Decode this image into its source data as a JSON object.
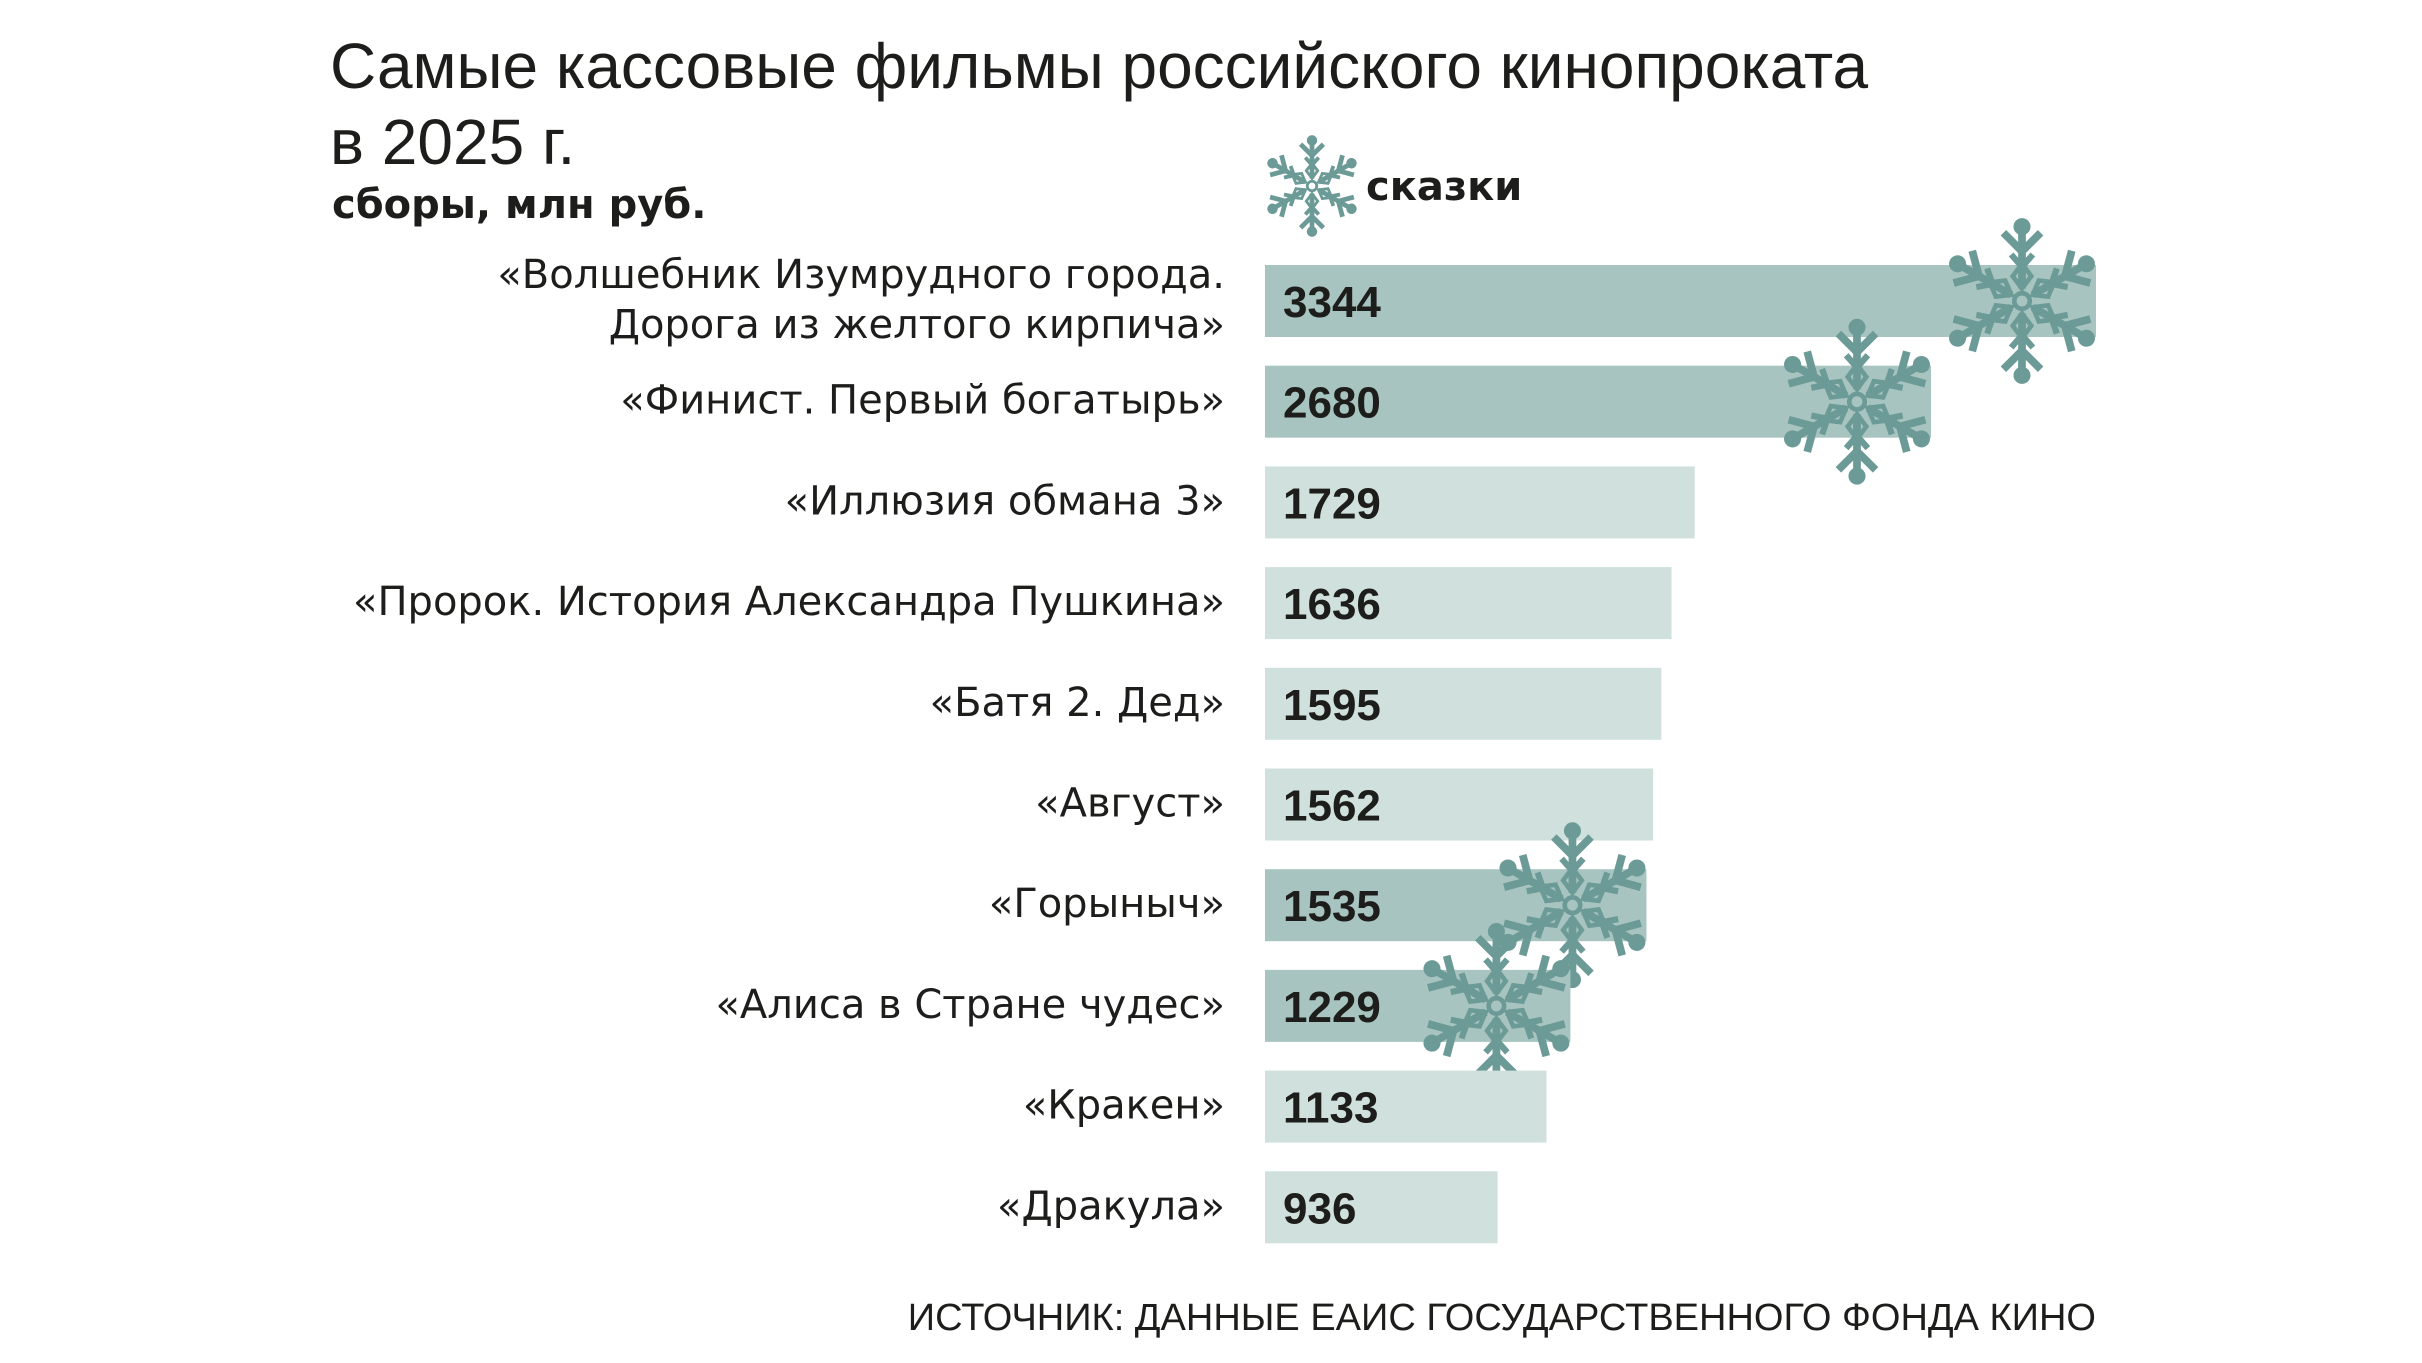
{
  "chart_data": {
    "type": "bar",
    "orientation": "horizontal",
    "title": "Самые кассовые фильмы российского кинопроката\nв 2025 г.",
    "subtitle": "сборы, млн руб.",
    "legend": {
      "label": "сказки"
    },
    "source": "ИСТОЧНИК: ДАННЫЕ ЕАИС ГОСУДАРСТВЕННОГО ФОНДА КИНО",
    "categories": [
      "«Волшебник Изумрудного города.\nДорога из желтого кирпича»",
      "«Финист. Первый богатырь»",
      "«Иллюзия обмана 3»",
      "«Пророк. История Александра Пушкина»",
      "«Батя 2. Дед»",
      "«Август»",
      "«Горыныч»",
      "«Алиса в Стране чудес»",
      "«Кракен»",
      "«Дракула»"
    ],
    "values": [
      3344,
      2680,
      1729,
      1636,
      1595,
      1562,
      1535,
      1229,
      1133,
      936
    ],
    "highlighted": [
      true,
      true,
      false,
      false,
      false,
      false,
      true,
      true,
      false,
      false
    ],
    "color": "#d0e1dd",
    "highlight_color": "#a8c4c0",
    "icon_color": "#6c9b97"
  }
}
